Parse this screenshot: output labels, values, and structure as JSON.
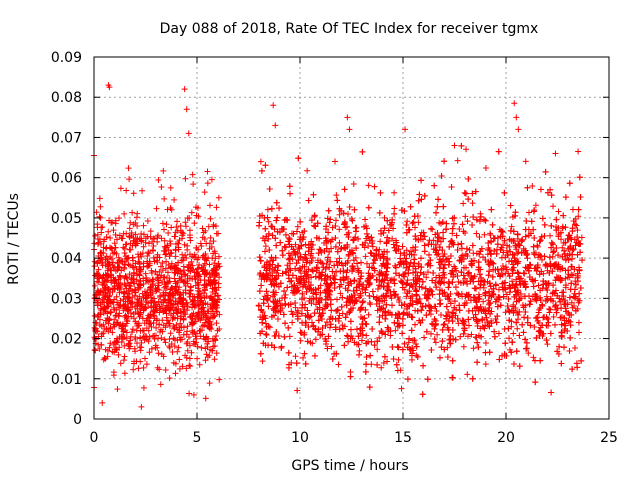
{
  "chart_data": {
    "type": "scatter",
    "title": "Day 088 of 2018, Rate Of TEC Index for receiver tgmx",
    "xlabel": "GPS time / hours",
    "ylabel": "ROTI / TECUs",
    "xlim": [
      0,
      25
    ],
    "ylim": [
      0,
      0.09
    ],
    "x_ticks": [
      0,
      5,
      10,
      15,
      20,
      25
    ],
    "x_tick_labels": [
      "0",
      "5",
      "10",
      "15",
      "20",
      "25"
    ],
    "y_ticks": [
      0,
      0.01,
      0.02,
      0.03,
      0.04,
      0.05,
      0.06,
      0.07,
      0.08,
      0.09
    ],
    "y_tick_labels": [
      "0",
      "0.01",
      "0.02",
      "0.03",
      "0.04",
      "0.05",
      "0.06",
      "0.07",
      "0.08",
      "0.09"
    ],
    "grid": true,
    "marker": "+",
    "color": "#ff0000",
    "coverage": [
      {
        "start": 0.0,
        "end": 6.1,
        "typical_range": [
          0.005,
          0.055
        ]
      },
      {
        "start": 8.0,
        "end": 23.7,
        "typical_range": [
          0.006,
          0.06
        ]
      }
    ],
    "notable_points": [
      {
        "x": 0.7,
        "y": 0.083
      },
      {
        "x": 0.75,
        "y": 0.0825
      },
      {
        "x": 4.4,
        "y": 0.082
      },
      {
        "x": 4.5,
        "y": 0.077
      },
      {
        "x": 4.6,
        "y": 0.071
      },
      {
        "x": 8.7,
        "y": 0.078
      },
      {
        "x": 8.8,
        "y": 0.073
      },
      {
        "x": 12.3,
        "y": 0.075
      },
      {
        "x": 12.4,
        "y": 0.072
      },
      {
        "x": 15.1,
        "y": 0.072
      },
      {
        "x": 17.5,
        "y": 0.068
      },
      {
        "x": 20.4,
        "y": 0.0785
      },
      {
        "x": 20.5,
        "y": 0.075
      },
      {
        "x": 20.6,
        "y": 0.072
      },
      {
        "x": 22.4,
        "y": 0.066
      },
      {
        "x": 23.5,
        "y": 0.0665
      },
      {
        "x": 0.0,
        "y": 0.0655
      },
      {
        "x": 2.3,
        "y": 0.003
      },
      {
        "x": 0.4,
        "y": 0.004
      },
      {
        "x": 8.1,
        "y": 0.064
      }
    ]
  }
}
